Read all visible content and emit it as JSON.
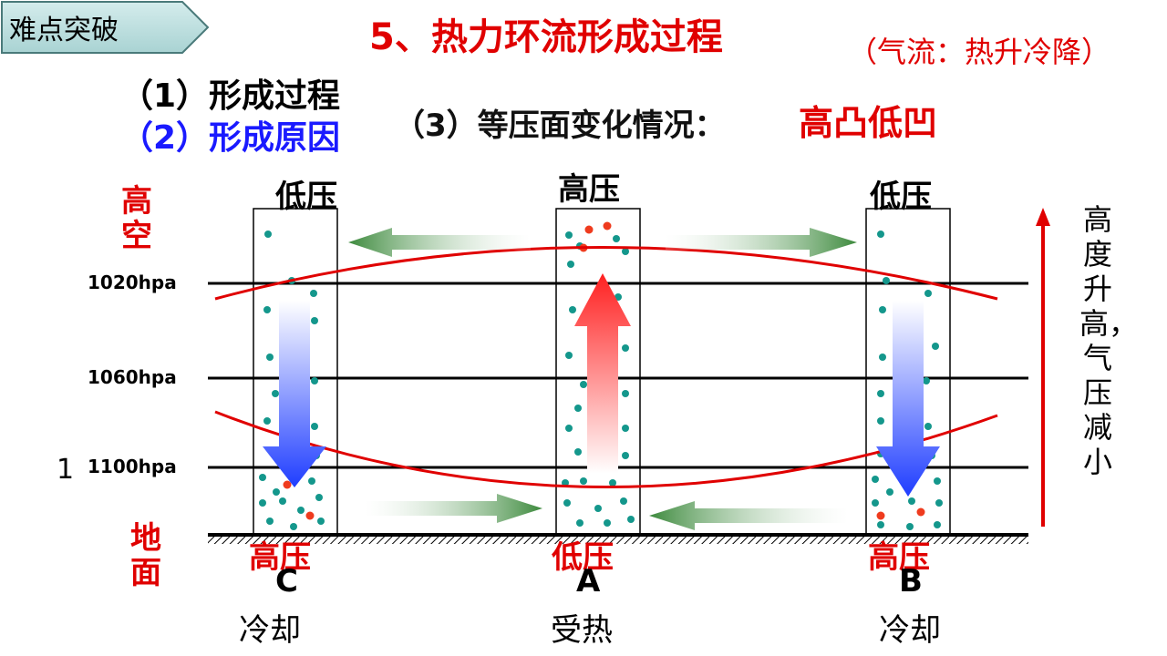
{
  "tag": {
    "label": "难点突破"
  },
  "title": "5、热力环流形成过程",
  "note": "（气流：热升冷降）",
  "subtitles": {
    "item1": "（1）形成过程",
    "item2": "（2）形成原因",
    "item3_label": "（3）等压面变化情况：",
    "item3_value": "高凸低凹"
  },
  "left_labels": {
    "upper": "高空",
    "ground": "地面"
  },
  "isobars": [
    "1020hpa",
    "1060hpa",
    "1100hpa"
  ],
  "stray_text": "1",
  "columns": [
    {
      "id": "C",
      "top_pressure": "低压",
      "ground_pressure": "高压",
      "letter": "C",
      "state": "冷却",
      "flow": "down"
    },
    {
      "id": "A",
      "top_pressure": "高压",
      "ground_pressure": "低压",
      "letter": "A",
      "state": "受热",
      "flow": "up"
    },
    {
      "id": "B",
      "top_pressure": "低压",
      "ground_pressure": "高压",
      "letter": "B",
      "state": "冷却",
      "flow": "down"
    }
  ],
  "right_note": "高度升高，气压减小",
  "colors": {
    "accent_red": "#e00000",
    "blue": "#1a1aff",
    "green_arrow": "#3d8a3d",
    "dot_teal": "#14978c",
    "dot_red": "#ef3b1e"
  }
}
